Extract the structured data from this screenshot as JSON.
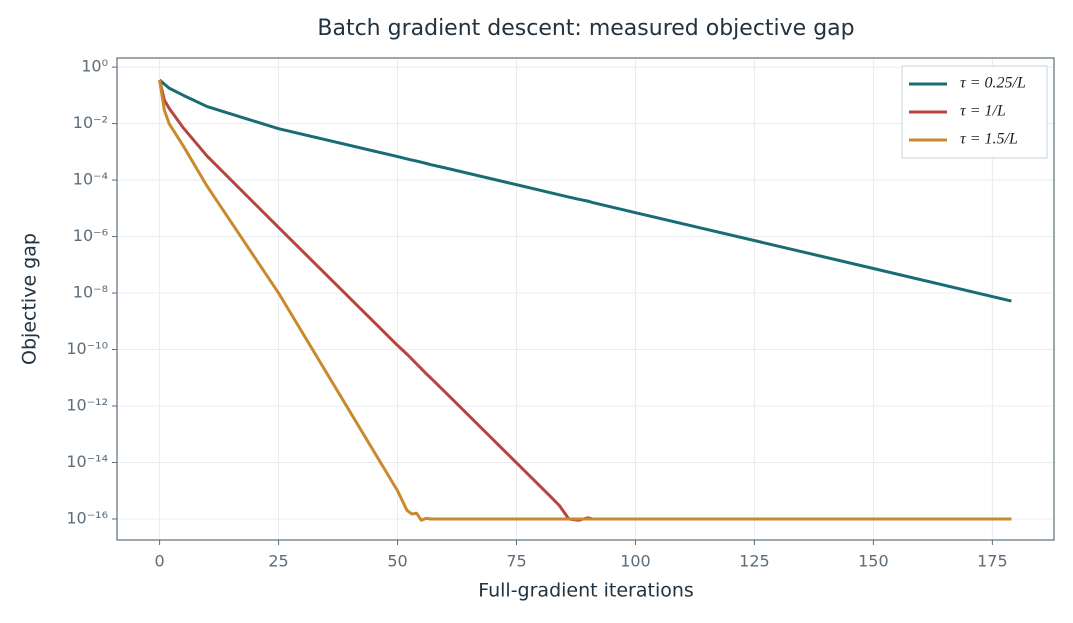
{
  "chart_data": {
    "type": "line",
    "title": "Batch gradient descent: measured objective gap",
    "x_label": "Full-gradient iterations",
    "y_label": "Objective gap",
    "x": [
      0,
      1,
      2,
      5,
      10,
      25,
      50,
      52,
      53,
      54,
      55,
      56,
      57,
      60,
      82,
      84,
      86,
      88,
      90,
      91,
      100,
      150,
      179
    ],
    "series": [
      {
        "name": "τ = 0.25/L",
        "color": "#1a6b73",
        "values": [
          0.35,
          0.25,
          0.18,
          0.1,
          0.04,
          0.0066,
          0.00068,
          0.00056,
          0.00051,
          0.00047,
          0.00043,
          0.00039,
          0.00035,
          0.00027,
          3.6e-05,
          3e-05,
          2.5e-05,
          2.1e-05,
          1.8e-05,
          1.6e-05,
          7e-06,
          7.4e-08,
          5.2e-09
        ]
      },
      {
        "name": "τ = 1/L",
        "color": "#b5463f",
        "values": [
          0.35,
          0.068,
          0.035,
          0.007,
          0.0007,
          2.1e-06,
          1.4e-10,
          6.8e-11,
          4.6e-11,
          3.1e-11,
          2.1e-11,
          1.4e-11,
          9.8e-12,
          3.1e-12,
          6.6e-16,
          3e-16,
          1e-16,
          9e-17,
          1.1e-16,
          1e-16,
          1e-16,
          1e-16,
          1e-16
        ]
      },
      {
        "name": "τ = 1.5/L",
        "color": "#c98a2f",
        "values": [
          0.35,
          0.03,
          0.01,
          0.0016,
          6e-05,
          1e-08,
          1e-15,
          2e-16,
          1.5e-16,
          1.6e-16,
          9e-17,
          1.05e-16,
          1e-16,
          1e-16,
          1e-16,
          1e-16,
          1e-16,
          1e-16,
          1e-16,
          1e-16,
          1e-16,
          1e-16,
          1e-16
        ]
      }
    ],
    "xlim": [
      -8.95,
      187.95
    ],
    "xticks": [
      0,
      25,
      50,
      75,
      100,
      125,
      150,
      175
    ],
    "ylim": [
      1.8e-17,
      2.1
    ],
    "yscale": "log",
    "yticks": [
      {
        "value": 1,
        "label": "10⁰"
      },
      {
        "value": 0.01,
        "label": "10⁻²"
      },
      {
        "value": 0.0001,
        "label": "10⁻⁴"
      },
      {
        "value": 1e-06,
        "label": "10⁻⁶"
      },
      {
        "value": 1e-08,
        "label": "10⁻⁸"
      },
      {
        "value": 1e-10,
        "label": "10⁻¹⁰"
      },
      {
        "value": 1e-12,
        "label": "10⁻¹²"
      },
      {
        "value": 1e-14,
        "label": "10⁻¹⁴"
      },
      {
        "value": 1e-16,
        "label": "10⁻¹⁶"
      }
    ],
    "grid": true,
    "legend": "upper right"
  }
}
